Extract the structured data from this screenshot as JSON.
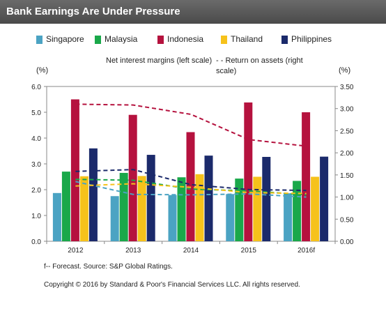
{
  "header": {
    "title": "Bank Earnings Are Under Pressure"
  },
  "legend": [
    {
      "label": "Singapore",
      "color": "#4ba3c3"
    },
    {
      "label": "Malaysia",
      "color": "#1aa84a"
    },
    {
      "label": "Indonesia",
      "color": "#b5123e"
    },
    {
      "label": "Thailand",
      "color": "#f6c21b"
    },
    {
      "label": "Philippines",
      "color": "#1b2a6b"
    }
  ],
  "notes": {
    "left": "Net interest margins (left scale)",
    "right": "- - Return on assets (right scale)"
  },
  "units": {
    "left": "(%)",
    "right": "(%)"
  },
  "chart_data": {
    "type": "bar",
    "categories": [
      "2012",
      "2013",
      "2014",
      "2015",
      "2016f"
    ],
    "series": [
      {
        "name": "Singapore",
        "values": [
          1.87,
          1.75,
          1.79,
          1.83,
          1.86
        ],
        "color": "#4ba3c3"
      },
      {
        "name": "Malaysia",
        "values": [
          2.7,
          2.65,
          2.48,
          2.43,
          2.34
        ],
        "color": "#1aa84a"
      },
      {
        "name": "Indonesia",
        "values": [
          5.5,
          4.9,
          4.23,
          5.38,
          5.0
        ],
        "color": "#b5123e"
      },
      {
        "name": "Thailand",
        "values": [
          2.52,
          2.53,
          2.6,
          2.5,
          2.5
        ],
        "color": "#f6c21b"
      },
      {
        "name": "Philippines",
        "values": [
          3.6,
          3.35,
          3.32,
          3.27,
          3.28
        ],
        "color": "#1b2a6b"
      }
    ],
    "roa_series": [
      {
        "name": "Singapore",
        "values": [
          1.35,
          1.06,
          1.05,
          1.07,
          1.0
        ],
        "color": "#4ba3c3"
      },
      {
        "name": "Malaysia",
        "values": [
          1.4,
          1.38,
          1.18,
          1.14,
          1.05
        ],
        "color": "#1aa84a"
      },
      {
        "name": "Indonesia",
        "values": [
          3.1,
          3.08,
          2.87,
          2.3,
          2.15
        ],
        "color": "#b5123e"
      },
      {
        "name": "Thailand",
        "values": [
          1.25,
          1.3,
          1.22,
          1.1,
          1.08
        ],
        "color": "#f6c21b"
      },
      {
        "name": "Philippines",
        "values": [
          1.58,
          1.62,
          1.28,
          1.17,
          1.15
        ],
        "color": "#1b2a6b"
      }
    ],
    "ylim": [
      0,
      6
    ],
    "y2lim": [
      0,
      3.5
    ],
    "yticks": [
      "0.0",
      "1.0",
      "2.0",
      "3.0",
      "4.0",
      "5.0",
      "6.0"
    ],
    "y2ticks": [
      "0.00",
      "0.50",
      "1.00",
      "1.50",
      "2.00",
      "2.50",
      "3.00",
      "3.50"
    ],
    "grid": false,
    "legend_position": "top"
  },
  "footnote": "f-- Forecast. Source: S&P Global Ratings.",
  "copyright": "Copyright © 2016 by Standard & Poor's Financial Services LLC. All rights reserved."
}
